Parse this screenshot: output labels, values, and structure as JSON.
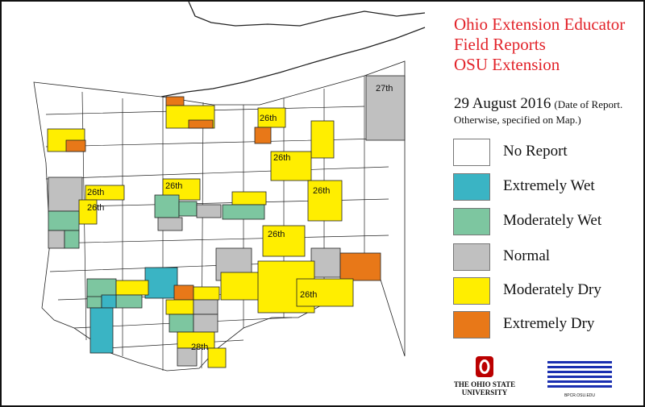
{
  "title": {
    "line1": "Ohio Extension Educator",
    "line2": "Field Reports",
    "line3": "OSU Extension"
  },
  "report": {
    "date": "29 August 2016",
    "note_part1": "(Date of Report.",
    "note_part2": "Otherwise, specified on Map.)"
  },
  "legend": [
    {
      "label": "No Report",
      "color": "#ffffff"
    },
    {
      "label": "Extremely Wet",
      "color": "#3ab4c4"
    },
    {
      "label": "Moderately Wet",
      "color": "#7dc6a0"
    },
    {
      "label": "Normal",
      "color": "#c0c0c0"
    },
    {
      "label": "Moderately Dry",
      "color": "#ffee00"
    },
    {
      "label": "Extremely Dry",
      "color": "#e87818"
    }
  ],
  "map_labels": [
    "27th",
    "26th",
    "26th",
    "26th",
    "26th",
    "26th",
    "26th",
    "26th",
    "26th",
    "28th"
  ],
  "logos": {
    "osu_line1": "THE OHIO STATE",
    "osu_line2": "UNIVERSITY",
    "bpcr_text": "BPCR.OSU.EDU"
  }
}
